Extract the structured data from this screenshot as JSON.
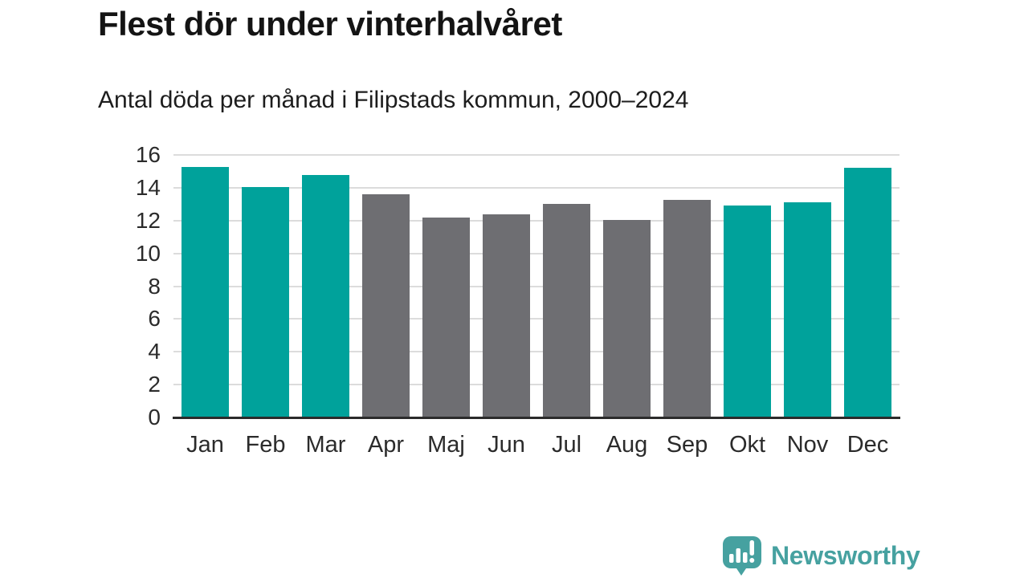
{
  "header": {
    "title": "Flest dör under vinterhalvåret",
    "subtitle": "Antal döda per månad i Filipstads kommun, 2000–2024"
  },
  "chart_data": {
    "type": "bar",
    "categories": [
      "Jan",
      "Feb",
      "Mar",
      "Apr",
      "Maj",
      "Jun",
      "Jul",
      "Aug",
      "Sep",
      "Okt",
      "Nov",
      "Dec"
    ],
    "values": [
      15.25,
      14.05,
      14.8,
      13.6,
      12.2,
      12.4,
      13.0,
      12.05,
      13.25,
      12.9,
      13.1,
      15.2
    ],
    "highlighted_categories": [
      "Jan",
      "Feb",
      "Mar",
      "Okt",
      "Nov",
      "Dec"
    ],
    "title": "Flest dör under vinterhalvåret",
    "subtitle": "Antal döda per månad i Filipstads kommun, 2000–2024",
    "xlabel": "",
    "ylabel": "",
    "ylim": [
      0,
      16
    ],
    "yticks": [
      0,
      2,
      4,
      6,
      8,
      10,
      12,
      14,
      16
    ],
    "grid": true,
    "legend": false,
    "colors": {
      "highlight": "#00a29b",
      "muted": "#6e6e72",
      "gridline": "#dcdcdc",
      "axis_line": "#2b2b2b",
      "tick_text": "#2b2b2b"
    }
  },
  "branding": {
    "logo_text": "Newsworthy",
    "logo_icon": "speech-bubble-bar-chart-icon",
    "logo_color": "#46a1a0"
  }
}
